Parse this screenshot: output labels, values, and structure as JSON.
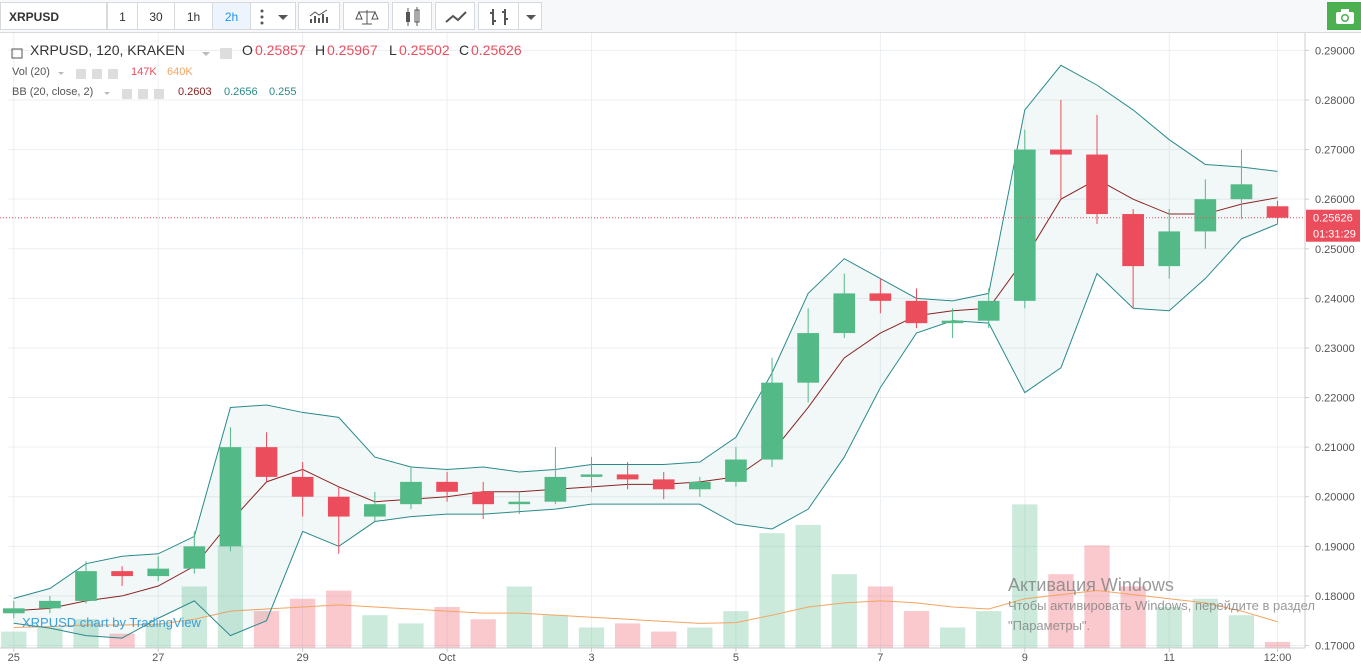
{
  "toolbar": {
    "symbol": "XRPUSD",
    "intervals": [
      "1",
      "30",
      "1h",
      "2h"
    ],
    "active_interval": 3
  },
  "chart_data": {
    "type": "candlestick",
    "title": "XRPUSD, 120, KRAKEN",
    "ohlc_labels": [
      "O",
      "H",
      "L",
      "C"
    ],
    "up_color": "#53b987",
    "down_color": "#eb4d5c",
    "x": [
      0,
      0.5,
      1,
      1.5,
      2,
      2.5,
      3,
      3.5,
      4,
      4.5,
      5,
      5.5,
      6,
      6.5,
      7,
      7.5,
      8,
      8.5,
      9,
      9.5,
      10,
      10.5,
      11,
      11.5,
      12,
      12.5,
      13,
      13.5,
      14,
      14.5,
      15,
      15.5,
      16,
      16.5,
      17,
      17.5
    ],
    "open": [
      0.1765,
      0.1775,
      0.179,
      0.185,
      0.184,
      0.1855,
      0.19,
      0.21,
      0.204,
      0.2,
      0.196,
      0.1985,
      0.203,
      0.201,
      0.1985,
      0.199,
      0.204,
      0.2045,
      0.2035,
      0.2015,
      0.203,
      0.2075,
      0.223,
      0.233,
      0.241,
      0.2395,
      0.235,
      0.2355,
      0.2395,
      0.27,
      0.269,
      0.257,
      0.2465,
      0.2535,
      0.26,
      0.25857
    ],
    "high": [
      0.179,
      0.18,
      0.187,
      0.186,
      0.188,
      0.193,
      0.214,
      0.213,
      0.207,
      0.202,
      0.201,
      0.206,
      0.205,
      0.203,
      0.201,
      0.21,
      0.208,
      0.207,
      0.205,
      0.204,
      0.21,
      0.228,
      0.238,
      0.245,
      0.244,
      0.242,
      0.238,
      0.242,
      0.274,
      0.28,
      0.277,
      0.258,
      0.258,
      0.264,
      0.27,
      0.25967
    ],
    "low": [
      0.1755,
      0.1765,
      0.1785,
      0.182,
      0.183,
      0.1845,
      0.189,
      0.203,
      0.196,
      0.1885,
      0.195,
      0.1975,
      0.199,
      0.1955,
      0.1965,
      0.1985,
      0.201,
      0.2015,
      0.1995,
      0.2,
      0.202,
      0.206,
      0.219,
      0.232,
      0.237,
      0.234,
      0.232,
      0.234,
      0.238,
      0.26,
      0.255,
      0.238,
      0.244,
      0.25,
      0.256,
      0.25502
    ],
    "close": [
      0.1775,
      0.179,
      0.185,
      0.184,
      0.1855,
      0.19,
      0.21,
      0.204,
      0.2,
      0.196,
      0.1985,
      0.203,
      0.201,
      0.1985,
      0.199,
      0.204,
      0.2045,
      0.2035,
      0.2015,
      0.203,
      0.2075,
      0.223,
      0.233,
      0.241,
      0.2395,
      0.235,
      0.2355,
      0.2395,
      0.27,
      0.269,
      0.257,
      0.2465,
      0.2535,
      0.26,
      0.263,
      0.25626
    ],
    "countdown": "01:31:29",
    "xlim": [
      -0.08,
      17.88
    ],
    "xticks": [
      {
        "value": 0,
        "label": "25"
      },
      {
        "value": 2,
        "label": "27"
      },
      {
        "value": 4,
        "label": "29"
      },
      {
        "value": 6,
        "label": "Oct"
      },
      {
        "value": 8,
        "label": "3"
      },
      {
        "value": 10,
        "label": "5"
      },
      {
        "value": 12,
        "label": "7"
      },
      {
        "value": 14,
        "label": "9"
      },
      {
        "value": 16,
        "label": "11"
      },
      {
        "value": 17.5,
        "label": "12:00"
      }
    ],
    "ylim": [
      0.1695,
      0.2925
    ],
    "yticks": [
      {
        "value": 0.17,
        "label": "0.17000"
      },
      {
        "value": 0.18,
        "label": "0.18000"
      },
      {
        "value": 0.19,
        "label": "0.19000"
      },
      {
        "value": 0.2,
        "label": "0.20000"
      },
      {
        "value": 0.21,
        "label": "0.21000"
      },
      {
        "value": 0.22,
        "label": "0.22000"
      },
      {
        "value": 0.23,
        "label": "0.23000"
      },
      {
        "value": 0.24,
        "label": "0.24000"
      },
      {
        "value": 0.25,
        "label": "0.25000"
      },
      {
        "value": 0.26,
        "label": "0.26000"
      },
      {
        "value": 0.27,
        "label": "0.27000"
      },
      {
        "value": 0.28,
        "label": "0.28000"
      },
      {
        "value": 0.29,
        "label": "0.29000"
      }
    ],
    "grid": true,
    "bollinger": {
      "name": "BB (20, close, 2)",
      "band_color": "#2a8a8a",
      "middle_color": "#8b2323",
      "upper": [
        0.1795,
        0.1815,
        0.1865,
        0.188,
        0.1885,
        0.192,
        0.218,
        0.2185,
        0.217,
        0.216,
        0.208,
        0.206,
        0.2055,
        0.206,
        0.205,
        0.2055,
        0.2065,
        0.2065,
        0.2065,
        0.207,
        0.212,
        0.225,
        0.241,
        0.248,
        0.244,
        0.24,
        0.2395,
        0.241,
        0.278,
        0.287,
        0.283,
        0.278,
        0.272,
        0.267,
        0.2665,
        0.2656
      ],
      "middle": [
        0.177,
        0.1775,
        0.179,
        0.18,
        0.182,
        0.186,
        0.195,
        0.203,
        0.2055,
        0.202,
        0.199,
        0.1995,
        0.2,
        0.201,
        0.201,
        0.2015,
        0.202,
        0.2025,
        0.2025,
        0.203,
        0.204,
        0.209,
        0.218,
        0.228,
        0.233,
        0.2365,
        0.2375,
        0.238,
        0.248,
        0.26,
        0.264,
        0.26,
        0.257,
        0.257,
        0.259,
        0.2603
      ],
      "lower": [
        0.1745,
        0.1735,
        0.172,
        0.1715,
        0.1755,
        0.179,
        0.172,
        0.175,
        0.193,
        0.19,
        0.195,
        0.196,
        0.1965,
        0.1965,
        0.197,
        0.1975,
        0.1985,
        0.1985,
        0.1985,
        0.1985,
        0.1945,
        0.1935,
        0.1975,
        0.208,
        0.222,
        0.233,
        0.2355,
        0.235,
        0.221,
        0.226,
        0.245,
        0.238,
        0.2375,
        0.244,
        0.252,
        0.255
      ]
    },
    "volume": {
      "name": "Vol (20)",
      "values": [
        400000,
        500000,
        700000,
        350000,
        600000,
        1500000,
        2500000,
        900000,
        1200000,
        1400000,
        800000,
        600000,
        1000000,
        700000,
        1500000,
        800000,
        500000,
        600000,
        400000,
        500000,
        900000,
        2800000,
        3000000,
        1800000,
        1500000,
        900000,
        500000,
        900000,
        3500000,
        1800000,
        2500000,
        1500000,
        1000000,
        1200000,
        800000,
        147000
      ],
      "value_labels": [
        null,
        null,
        null,
        null,
        null,
        null,
        null,
        null,
        null,
        null,
        null,
        null,
        null,
        null,
        null,
        null,
        null,
        null,
        null,
        null,
        null,
        null,
        null,
        null,
        null,
        null,
        null,
        null,
        null,
        null,
        null,
        null,
        null,
        null,
        null,
        "147K"
      ]
    },
    "volume_ma": {
      "color": "#f4a460",
      "values": [
        500000,
        520000,
        560000,
        560000,
        580000,
        700000,
        900000,
        950000,
        1000000,
        1050000,
        1000000,
        950000,
        900000,
        850000,
        850000,
        800000,
        750000,
        700000,
        650000,
        600000,
        620000,
        800000,
        1000000,
        1100000,
        1150000,
        1100000,
        1000000,
        950000,
        1200000,
        1300000,
        1400000,
        1300000,
        1200000,
        1100000,
        900000,
        640000
      ],
      "value_labels": [
        null,
        null,
        null,
        null,
        null,
        null,
        null,
        null,
        null,
        null,
        null,
        null,
        null,
        null,
        null,
        null,
        null,
        null,
        null,
        null,
        null,
        null,
        null,
        null,
        null,
        null,
        null,
        null,
        null,
        null,
        null,
        null,
        null,
        null,
        null,
        "640K"
      ]
    },
    "volume_lim": [
      0,
      3900000
    ]
  },
  "watermark": "XRPUSD chart by TradingView",
  "overlay": {
    "title": "Активация Windows",
    "text": "Чтобы активировать Windows, перейдите в раздел \"Параметры\"."
  }
}
